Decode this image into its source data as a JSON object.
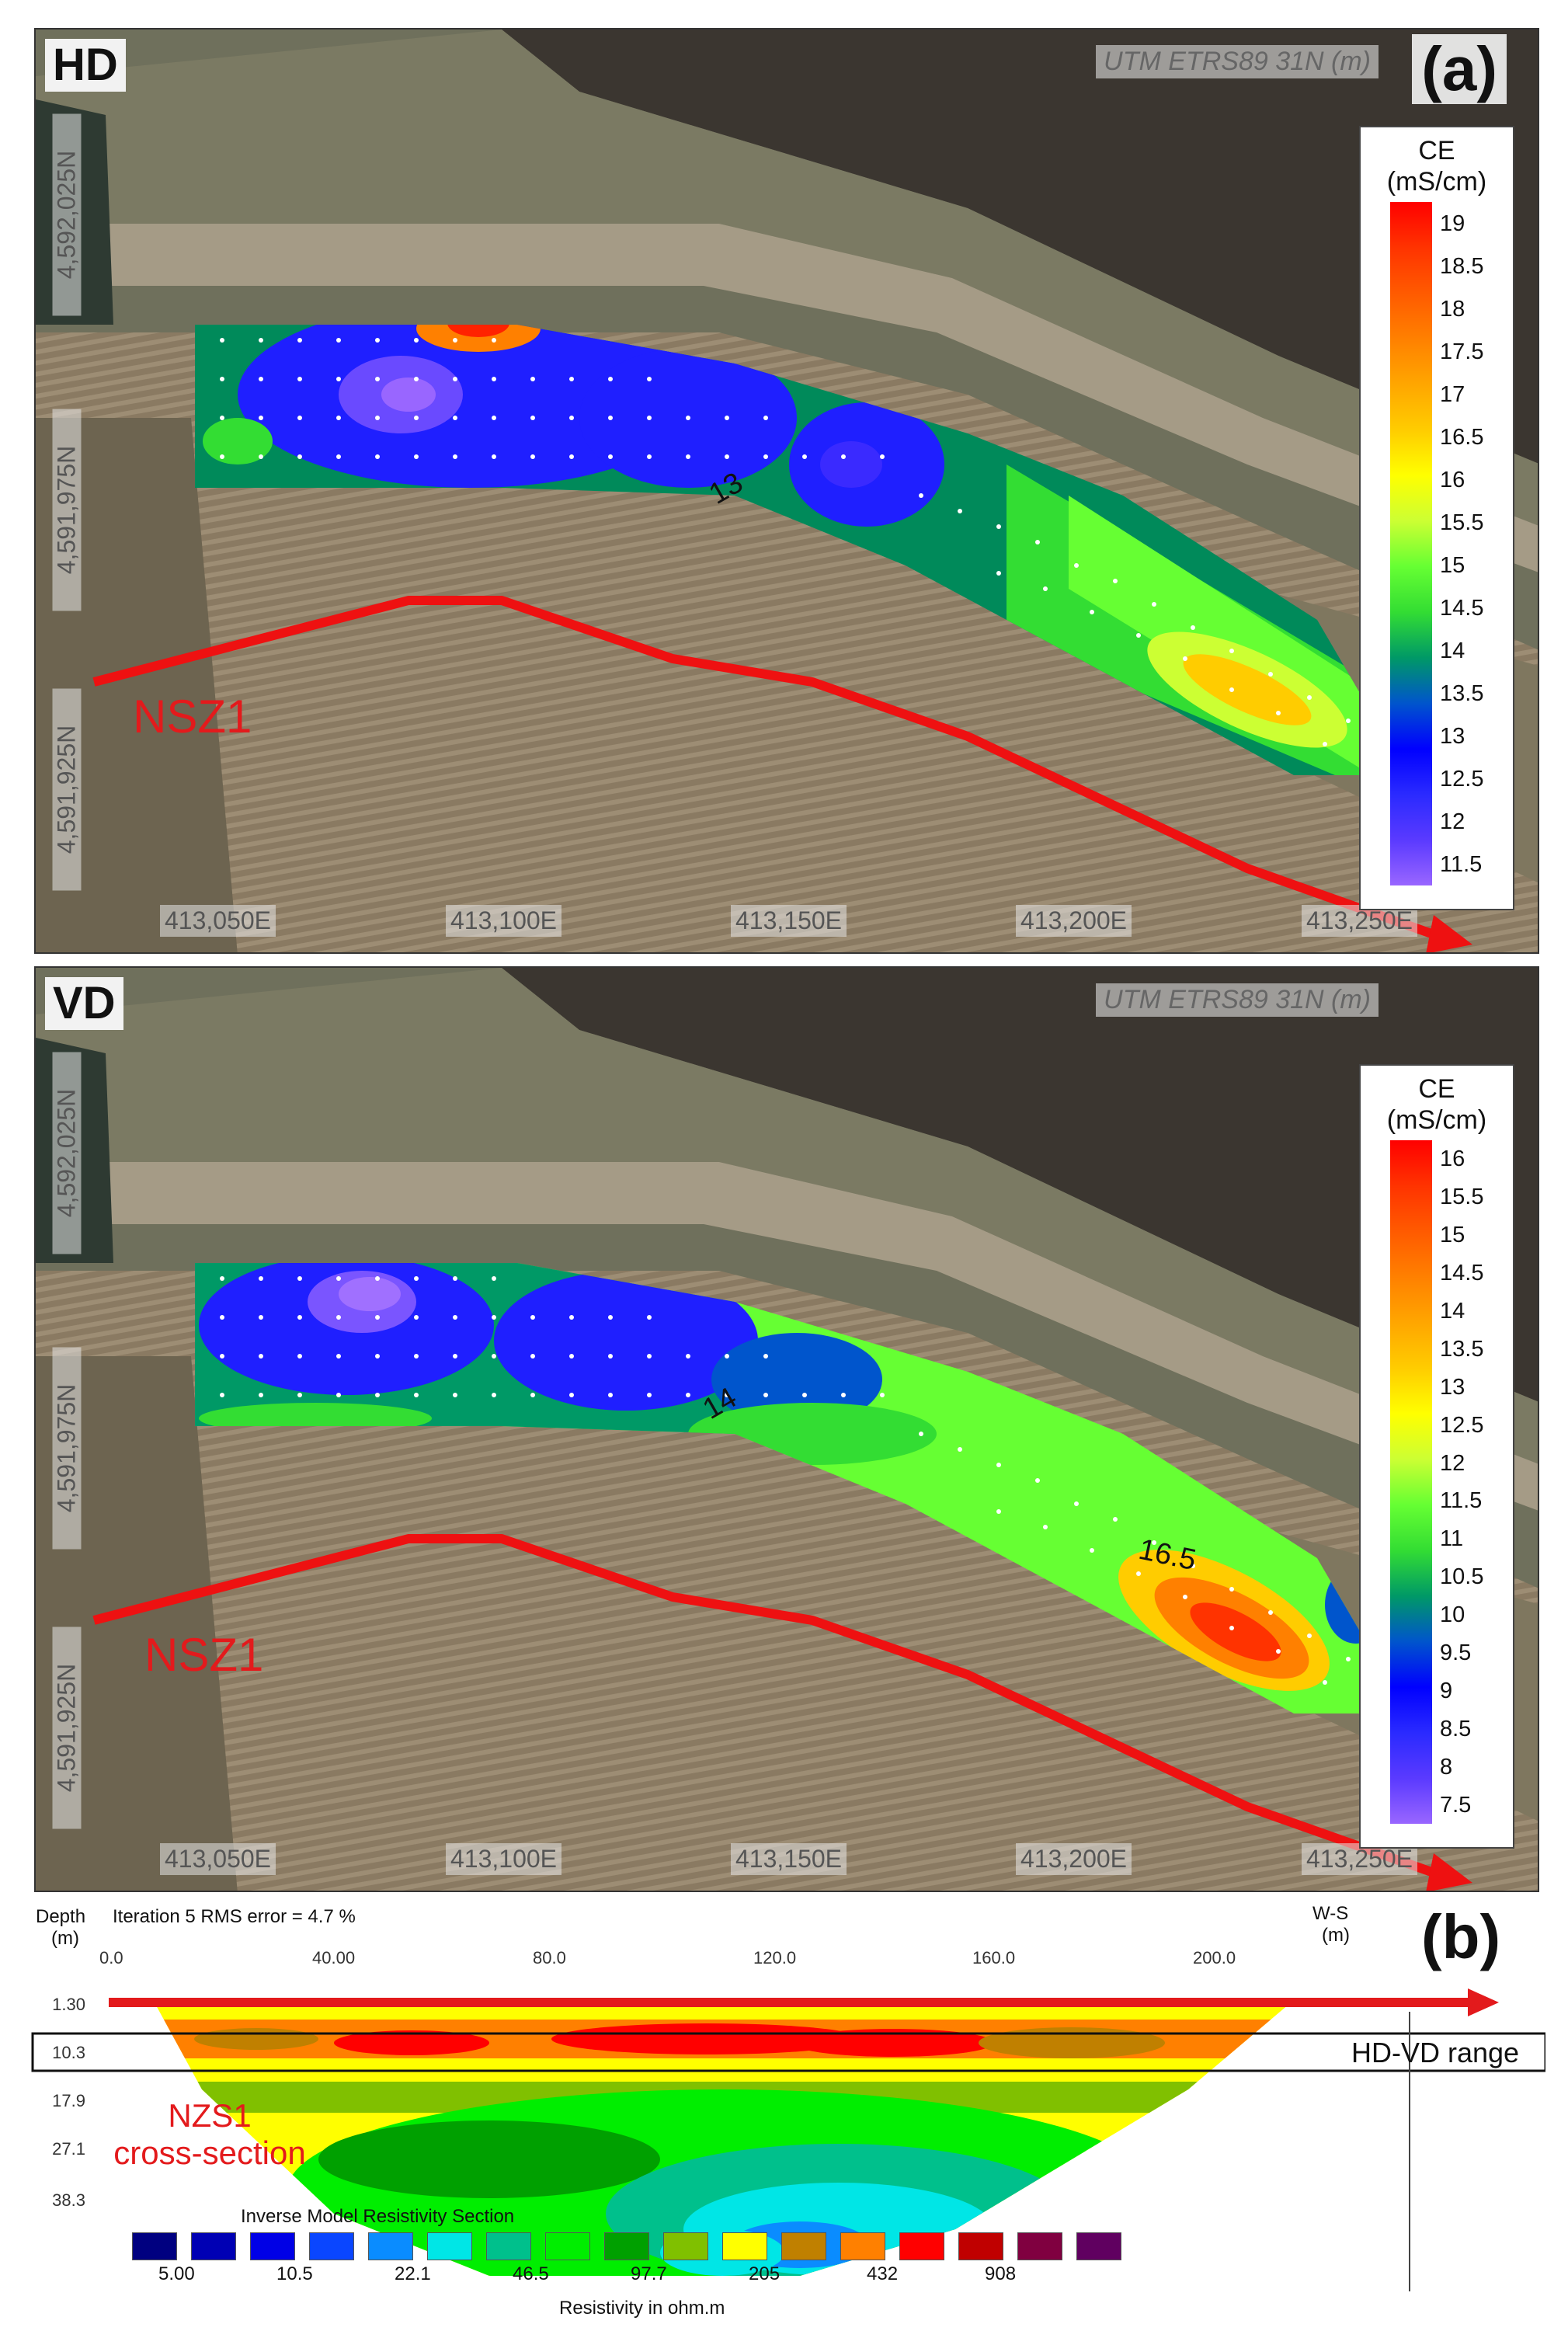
{
  "panel_a": {
    "tag": "HD",
    "crs": "UTM ETRS89 31N (m)",
    "letter": "(a)",
    "legend_title_1": "CE",
    "legend_title_2": "(mS/cm)",
    "legend_ticks": [
      "19",
      "18.5",
      "18",
      "17.5",
      "17",
      "16.5",
      "16",
      "15.5",
      "15",
      "14.5",
      "14",
      "13.5",
      "13",
      "12.5",
      "12",
      "11.5"
    ],
    "y_labels": [
      "4,592,025N",
      "4,591,975N",
      "4,591,925N"
    ],
    "x_labels": [
      "413,050E",
      "413,100E",
      "413,150E",
      "413,200E",
      "413,250E"
    ],
    "fault": "NSZ1",
    "contour_label": "13"
  },
  "panel_b": {
    "tag": "VD",
    "crs": "UTM ETRS89 31N (m)",
    "legend_title_1": "CE",
    "legend_title_2": "(mS/cm)",
    "legend_ticks": [
      "16",
      "15.5",
      "15",
      "14.5",
      "14",
      "13.5",
      "13",
      "12.5",
      "12",
      "11.5",
      "11",
      "10.5",
      "10",
      "9.5",
      "9",
      "8.5",
      "8",
      "7.5"
    ],
    "y_labels": [
      "4,592,025N",
      "4,591,975N",
      "4,591,925N"
    ],
    "x_labels": [
      "413,050E",
      "413,100E",
      "413,150E",
      "413,200E",
      "413,250E"
    ],
    "fault": "NSZ1",
    "contour_label_1": "14",
    "contour_label_2": "16.5"
  },
  "colors": {
    "ce_scale": [
      "#ff0000",
      "#ff3300",
      "#ff5a00",
      "#ff8000",
      "#ffa600",
      "#ffcc00",
      "#ffff00",
      "#ccff33",
      "#66ff33",
      "#33dd33",
      "#009966",
      "#0055cc",
      "#0000ff",
      "#2a2aff",
      "#5a3aff",
      "#9966ff"
    ],
    "resistivity_scale": [
      "#000080",
      "#0000b4",
      "#0000e6",
      "#0a46ff",
      "#0a8cff",
      "#00e6e6",
      "#00c08c",
      "#00ee00",
      "#00a000",
      "#80c000",
      "#ffff00",
      "#c08000",
      "#ff8000",
      "#ff0000",
      "#c00000",
      "#800040",
      "#600060"
    ]
  },
  "section": {
    "letter": "(b)",
    "depth_header": "Depth",
    "depth_unit": "(m)",
    "iteration": "Iteration 5 RMS error = 4.7 %",
    "direction": "W-S",
    "direction_unit": "(m)",
    "x_ticks": [
      "0.0",
      "40.00",
      "80.0",
      "120.0",
      "160.0",
      "200.0"
    ],
    "depths": [
      "1.30",
      "10.3",
      "17.9",
      "27.1",
      "38.3"
    ],
    "range_label": "HD-VD range",
    "cs_label_1": "NZS1",
    "cs_label_2": "cross-section",
    "legend_title": "Inverse Model Resistivity Section",
    "legend_values": [
      "5.00",
      "10.5",
      "22.1",
      "46.5",
      "97.7",
      "205",
      "432",
      "908"
    ],
    "legend_unit": "Resistivity in ohm.m"
  }
}
